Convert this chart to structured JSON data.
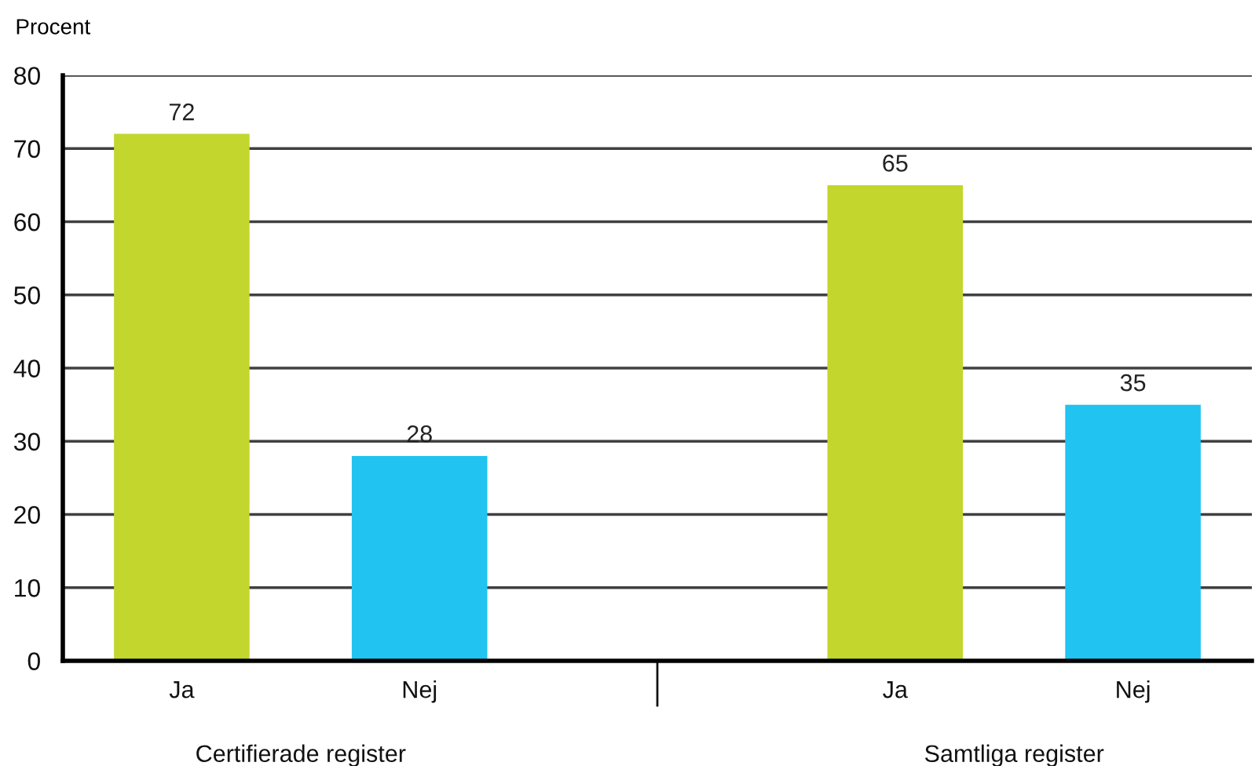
{
  "chart_data": {
    "type": "bar",
    "ylabel": "Procent",
    "categories": [
      "Ja",
      "Nej",
      null,
      "Ja",
      "Nej"
    ],
    "values": [
      72,
      28,
      null,
      65,
      35
    ],
    "colors": [
      "#c2d62e",
      "#21c3f0",
      null,
      "#c2d62e",
      "#21c3f0"
    ],
    "ylim": [
      0,
      80
    ],
    "yticks": [
      0,
      10,
      20,
      30,
      40,
      50,
      60,
      70,
      80
    ],
    "grid": "y",
    "data_labels": true,
    "annotations": [
      "Certifierade register",
      "Samtliga register"
    ]
  }
}
